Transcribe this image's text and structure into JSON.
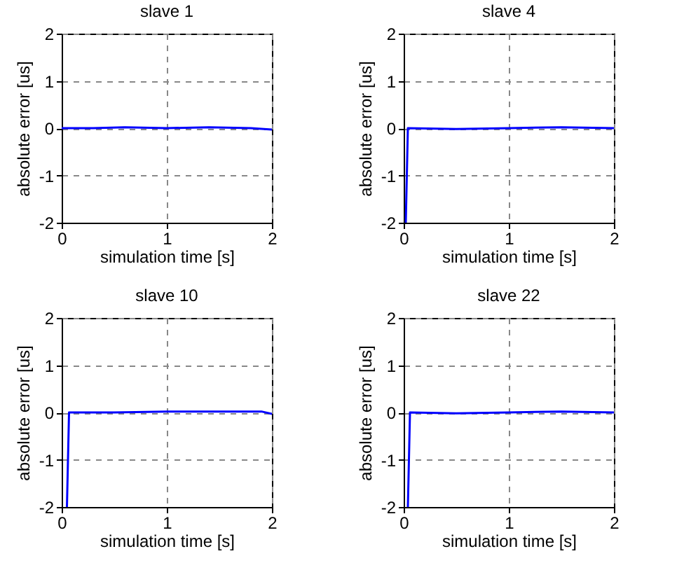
{
  "chart_data": [
    {
      "type": "line",
      "title": "slave 1",
      "xlabel": "simulation time [s]",
      "ylabel": "absolute error [us]",
      "x": [
        0,
        0.3,
        0.6,
        1,
        1.4,
        1.8,
        2
      ],
      "series": [
        {
          "color": "#0000ff",
          "values": [
            0,
            0,
            0.02,
            0,
            0.02,
            0,
            -0.03
          ]
        }
      ],
      "xlim": [
        0,
        2
      ],
      "ylim": [
        -2,
        2
      ],
      "xticks": [
        0,
        1,
        2
      ],
      "yticks": [
        -2,
        -1,
        0,
        1,
        2
      ],
      "grid": true
    },
    {
      "type": "line",
      "title": "slave 4",
      "xlabel": "simulation time [s]",
      "ylabel": "absolute error [us]",
      "x": [
        0.02,
        0.04,
        0.5,
        1,
        1.5,
        2
      ],
      "series": [
        {
          "color": "#0000ff",
          "values": [
            -2,
            0,
            -0.02,
            0,
            0.02,
            0
          ]
        }
      ],
      "xlim": [
        0,
        2
      ],
      "ylim": [
        -2,
        2
      ],
      "xticks": [
        0,
        1,
        2
      ],
      "yticks": [
        -2,
        -1,
        0,
        1,
        2
      ],
      "grid": true
    },
    {
      "type": "line",
      "title": "slave 10",
      "xlabel": "simulation time [s]",
      "ylabel": "absolute error [us]",
      "x": [
        0.05,
        0.07,
        0.5,
        1,
        1.5,
        1.9,
        2
      ],
      "series": [
        {
          "color": "#0000ff",
          "values": [
            -2,
            0,
            0,
            0.02,
            0.02,
            0.02,
            -0.03
          ]
        }
      ],
      "xlim": [
        0,
        2
      ],
      "ylim": [
        -2,
        2
      ],
      "xticks": [
        0,
        1,
        2
      ],
      "yticks": [
        -2,
        -1,
        0,
        1,
        2
      ],
      "grid": true
    },
    {
      "type": "line",
      "title": "slave 22",
      "xlabel": "simulation time [s]",
      "ylabel": "absolute error [us]",
      "x": [
        0.04,
        0.06,
        0.5,
        1,
        1.5,
        2
      ],
      "series": [
        {
          "color": "#0000ff",
          "values": [
            -2,
            0,
            -0.02,
            0,
            0.02,
            0
          ]
        }
      ],
      "xlim": [
        0,
        2
      ],
      "ylim": [
        -2,
        2
      ],
      "xticks": [
        0,
        1,
        2
      ],
      "yticks": [
        -2,
        -1,
        0,
        1,
        2
      ],
      "grid": true
    }
  ]
}
